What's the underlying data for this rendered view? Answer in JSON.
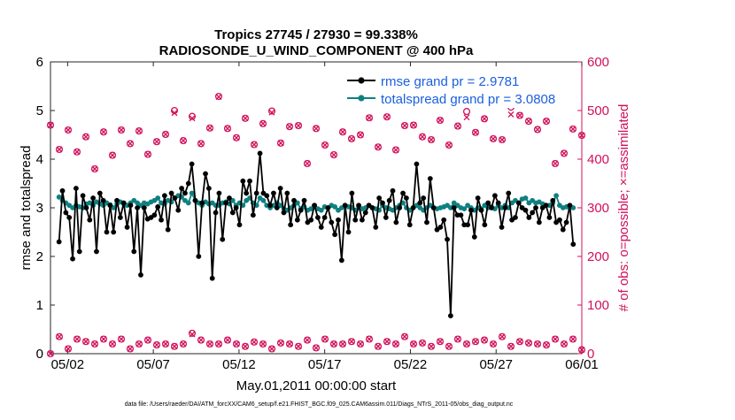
{
  "title_line1": "Tropics 27745 / 27930 = 99.338%",
  "title_line2": "RADIOSONDE_U_WIND_COMPONENT @ 400 hPa",
  "ylabel_left": "rmse and totalspread",
  "ylabel_right": "# of obs: o=possible; ×=assimilated",
  "xlabel": "May.01,2011 00:00:00 start",
  "footer": "data file: /Users/raeder/DAI/ATM_forcXX/CAM6_setup/f.e21.FHIST_BGC.f09_025.CAM6assim.011/Diags_NTrS_2011-05/obs_diag_output.nc",
  "colors": {
    "rmse": "#000000",
    "spread": "#0f8080",
    "obs": "#d0105a",
    "legend_text": "#1a5fe0"
  },
  "chart_data": {
    "type": "line",
    "x_unit": "days since May.01,2011",
    "xlim": [
      0.5,
      31.5
    ],
    "xticks": [
      1.5,
      6.5,
      11.5,
      16.5,
      21.5,
      26.5,
      31.5
    ],
    "xtick_labels": [
      "05/02",
      "05/07",
      "05/12",
      "05/17",
      "05/22",
      "05/27",
      "06/01"
    ],
    "ylim_left": [
      0,
      6
    ],
    "yticks_left": [
      "0",
      "1",
      "2",
      "3",
      "4",
      "5",
      "6"
    ],
    "ylim_right": [
      0,
      600
    ],
    "yticks_right": [
      "0",
      "100",
      "200",
      "300",
      "400",
      "500",
      "600"
    ],
    "legend": [
      {
        "name": "rmse grand pr = 2.9781",
        "series": "rmse"
      },
      {
        "name": "totalspread grand pr = 3.0808",
        "series": "totalspread"
      }
    ],
    "series": [
      {
        "name": "rmse",
        "axis": "left",
        "values": [
          2.3,
          3.35,
          2.9,
          2.8,
          1.95,
          3.4,
          2.1,
          3.25,
          3.0,
          2.75,
          3.2,
          2.1,
          3.3,
          3.15,
          2.5,
          3.05,
          2.5,
          3.15,
          2.8,
          3.1,
          2.6,
          3.05,
          2.1,
          3.0,
          1.62,
          3.0,
          2.77,
          2.8,
          2.85,
          3.02,
          2.75,
          3.25,
          2.55,
          3.3,
          3.2,
          2.95,
          3.4,
          3.3,
          3.5,
          3.9,
          3.15,
          2.0,
          3.1,
          3.7,
          3.4,
          1.55,
          2.9,
          3.3,
          2.35,
          3.1,
          3.2,
          2.9,
          3.0,
          2.65,
          3.55,
          3.3,
          3.55,
          2.85,
          3.3,
          4.12,
          3.3,
          3.25,
          3.05,
          3.3,
          3.0,
          3.4,
          2.9,
          3.3,
          2.65,
          3.15,
          2.75,
          2.95,
          3.15,
          2.7,
          2.75,
          3.05,
          2.8,
          2.6,
          2.8,
          3.0,
          2.7,
          2.45,
          2.75,
          1.92,
          3.05,
          2.5,
          3.3,
          2.75,
          3.05,
          2.75,
          2.9,
          3.05,
          3.0,
          2.6,
          3.2,
          3.1,
          2.8,
          3.15,
          3.35,
          2.7,
          3.0,
          3.3,
          3.2,
          2.65,
          3.0,
          3.9,
          3.1,
          3.2,
          2.7,
          3.6,
          3.0,
          2.55,
          2.6,
          2.75,
          2.35,
          0.78,
          3.0,
          2.85,
          2.85,
          2.65,
          2.65,
          2.95,
          2.4,
          3.2,
          2.95,
          2.65,
          3.1,
          3.0,
          3.25,
          3.1,
          2.6,
          3.0,
          3.3,
          2.75,
          2.8,
          3.1,
          3.0,
          2.95,
          2.8,
          2.9,
          3.0,
          2.7,
          3.0,
          3.05,
          2.8,
          3.15,
          2.7,
          2.75,
          2.55,
          2.7,
          3.05,
          2.25
        ]
      },
      {
        "name": "totalspread",
        "axis": "left",
        "values": [
          3.22,
          3.15,
          3.1,
          3.05,
          3.0,
          3.05,
          3.02,
          3.0,
          3.08,
          3.1,
          3.05,
          3.12,
          3.08,
          3.05,
          3.1,
          3.06,
          3.0,
          3.08,
          3.12,
          3.08,
          3.05,
          3.1,
          3.15,
          3.1,
          3.05,
          3.1,
          3.08,
          3.12,
          3.15,
          3.2,
          3.1,
          3.08,
          3.15,
          3.12,
          3.2,
          3.25,
          3.22,
          3.15,
          3.1,
          3.3,
          3.15,
          3.1,
          3.05,
          3.12,
          3.08,
          3.1,
          3.05,
          3.05,
          3.1,
          3.12,
          3.08,
          3.15,
          3.05,
          3.1,
          3.05,
          3.15,
          3.2,
          3.1,
          3.05,
          3.2,
          3.15,
          3.05,
          3.0,
          3.05,
          3.1,
          3.05,
          2.98,
          2.95,
          3.0,
          3.05,
          3.1,
          2.98,
          3.02,
          2.95,
          2.98,
          3.05,
          2.98,
          2.95,
          3.02,
          3.0,
          3.05,
          3.02,
          2.95,
          3.0,
          3.05,
          3.02,
          3.0,
          2.95,
          3.02,
          2.98,
          3.0,
          3.05,
          3.0,
          2.98,
          2.95,
          3.05,
          3.0,
          2.98,
          2.95,
          3.0,
          3.05,
          3.1,
          3.0,
          2.95,
          3.0,
          3.05,
          3.0,
          2.95,
          3.0,
          3.05,
          3.0,
          2.98,
          3.0,
          3.02,
          3.05,
          3.0,
          3.1,
          3.05,
          3.0,
          2.98,
          3.05,
          3.0,
          2.95,
          3.0,
          2.98,
          3.05,
          3.0,
          3.02,
          2.98,
          3.05,
          3.0,
          3.05,
          3.0,
          3.1,
          3.15,
          3.1,
          3.18,
          3.2,
          3.1,
          3.15,
          3.1,
          3.12,
          3.08,
          3.05,
          3.05,
          3.1,
          3.25,
          3.05,
          3.0,
          3.02,
          3.0,
          3.0
        ]
      },
      {
        "name": "obs possible",
        "axis": "right",
        "values": [
          470,
          420,
          460,
          415,
          446,
          380,
          456,
          408,
          460,
          432,
          458,
          410,
          436,
          451,
          500,
          438,
          488,
          432,
          464,
          529,
          463,
          444,
          484,
          430,
          473,
          499,
          433,
          467,
          469,
          391,
          463,
          429,
          409,
          456,
          442,
          450,
          485,
          425,
          487,
          419,
          469,
          470,
          446,
          440,
          480,
          429,
          468,
          498,
          455,
          483,
          442,
          440,
          507,
          490,
          478,
          461,
          478,
          391,
          412,
          462,
          449
        ]
      },
      {
        "name": "obs assimilated",
        "axis": "right",
        "values": [
          470,
          420,
          460,
          415,
          446,
          380,
          456,
          408,
          460,
          432,
          458,
          410,
          436,
          451,
          495,
          438,
          484,
          432,
          464,
          528,
          463,
          444,
          484,
          430,
          473,
          496,
          433,
          467,
          469,
          391,
          463,
          429,
          409,
          456,
          442,
          450,
          485,
          425,
          487,
          419,
          469,
          470,
          446,
          440,
          480,
          429,
          468,
          486,
          455,
          483,
          442,
          440,
          492,
          490,
          478,
          461,
          478,
          391,
          412,
          462,
          449
        ]
      },
      {
        "name": "obs low possible",
        "axis": "right",
        "values": [
          0,
          35,
          10,
          30,
          25,
          20,
          30,
          20,
          30,
          10,
          20,
          28,
          18,
          20,
          15,
          20,
          42,
          28,
          20,
          20,
          28,
          20,
          15,
          24,
          20,
          10,
          22,
          20,
          15,
          28,
          12,
          30,
          20,
          20,
          25,
          20,
          30,
          15,
          25,
          20,
          35,
          20,
          22,
          15,
          25,
          15,
          30,
          20,
          25,
          28,
          20,
          35,
          15,
          25,
          22,
          20,
          18,
          30,
          20,
          30,
          8
        ]
      },
      {
        "name": "obs low assimilated",
        "axis": "right",
        "values": [
          0,
          35,
          10,
          30,
          25,
          20,
          30,
          20,
          30,
          10,
          20,
          28,
          18,
          20,
          15,
          20,
          40,
          28,
          20,
          20,
          28,
          20,
          15,
          24,
          20,
          10,
          22,
          20,
          15,
          28,
          12,
          30,
          20,
          20,
          25,
          20,
          30,
          15,
          25,
          20,
          35,
          20,
          22,
          15,
          25,
          15,
          30,
          20,
          25,
          28,
          20,
          35,
          15,
          25,
          22,
          20,
          18,
          30,
          20,
          30,
          8
        ]
      }
    ]
  }
}
